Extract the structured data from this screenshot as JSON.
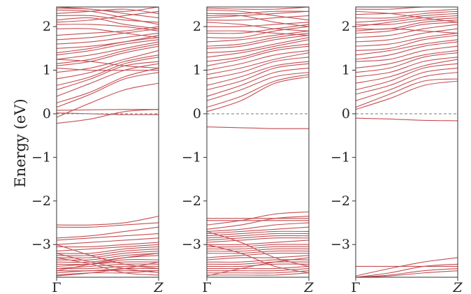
{
  "chart_data": {
    "type": "line",
    "ylabel": "Energy (eV)",
    "ylim": [
      -3.75,
      2.45
    ],
    "yticks": [
      2,
      1,
      0,
      -1,
      -2,
      -3
    ],
    "ytick_labels": [
      "2",
      "1",
      "0",
      "−1",
      "−2",
      "−3"
    ],
    "xtick_labels": [
      "Γ",
      "Z"
    ],
    "line_color": "#c44e52",
    "fermi_line": {
      "y": 0,
      "color": "#888888",
      "style": "dashed"
    },
    "panels": [
      {
        "name": "panel-1",
        "bands_above": [
          [
            -0.22,
            -0.12,
            0.05,
            0.1
          ],
          [
            0.02,
            0.0,
            -0.02,
            -0.02
          ],
          [
            0.08,
            0.09,
            0.1,
            0.1
          ],
          [
            -0.08,
            0.25,
            0.55,
            0.7
          ],
          [
            0.15,
            0.45,
            0.8,
            0.95
          ],
          [
            0.25,
            0.5,
            0.85,
            1.05
          ],
          [
            0.4,
            0.7,
            1.0,
            1.15
          ],
          [
            0.55,
            0.8,
            1.1,
            1.2
          ],
          [
            0.65,
            0.85,
            1.15,
            1.3
          ],
          [
            0.8,
            0.95,
            1.2,
            1.35
          ],
          [
            0.95,
            1.05,
            1.25,
            1.45
          ],
          [
            1.1,
            1.2,
            1.4,
            1.55
          ],
          [
            1.15,
            1.25,
            1.45,
            1.6
          ],
          [
            1.25,
            1.35,
            1.5,
            1.65
          ],
          [
            1.35,
            1.45,
            1.6,
            1.7
          ],
          [
            1.4,
            1.5,
            1.65,
            1.75
          ],
          [
            1.5,
            1.55,
            1.65,
            1.8
          ],
          [
            1.6,
            1.65,
            1.75,
            1.85
          ],
          [
            1.7,
            1.75,
            1.85,
            1.95
          ],
          [
            1.8,
            1.85,
            1.9,
            2.0
          ],
          [
            1.95,
            1.95,
            1.85,
            1.75
          ],
          [
            2.05,
            2.05,
            2.0,
            1.9
          ],
          [
            2.1,
            2.15,
            2.25,
            2.35
          ],
          [
            2.15,
            2.2,
            2.05,
            1.95
          ],
          [
            2.25,
            2.25,
            2.15,
            2.1
          ],
          [
            2.3,
            2.35,
            2.4,
            2.3
          ],
          [
            2.38,
            2.35,
            2.2,
            2.05
          ],
          [
            2.42,
            2.4,
            2.3,
            2.2
          ],
          [
            1.05,
            1.0,
            1.0,
            1.0
          ],
          [
            1.25,
            1.2,
            1.1,
            1.05
          ],
          [
            2.45,
            2.4,
            2.35,
            2.45
          ]
        ],
        "bands_below": [
          [
            -2.55,
            -2.55,
            -2.5,
            -2.35
          ],
          [
            -2.6,
            -2.6,
            -2.55,
            -2.5
          ],
          [
            -2.85,
            -2.8,
            -2.7,
            -2.6
          ],
          [
            -2.9,
            -2.85,
            -2.8,
            -2.75
          ],
          [
            -3.0,
            -2.95,
            -2.9,
            -2.85
          ],
          [
            -3.05,
            -3.05,
            -3.0,
            -2.95
          ],
          [
            -3.15,
            -3.1,
            -3.05,
            -3.0
          ],
          [
            -3.2,
            -3.2,
            -3.1,
            -3.05
          ],
          [
            -3.25,
            -3.25,
            -3.15,
            -3.1
          ],
          [
            -3.3,
            -3.3,
            -3.2,
            -3.15
          ],
          [
            -3.35,
            -3.35,
            -3.25,
            -3.2
          ],
          [
            -3.4,
            -3.4,
            -3.3,
            -3.25
          ],
          [
            -3.45,
            -3.45,
            -3.35,
            -3.35
          ],
          [
            -3.5,
            -3.45,
            -3.4,
            -3.4
          ],
          [
            -3.55,
            -3.5,
            -3.45,
            -3.45
          ],
          [
            -3.55,
            -3.55,
            -3.5,
            -3.5
          ],
          [
            -3.6,
            -3.6,
            -3.55,
            -3.55
          ],
          [
            -3.65,
            -3.6,
            -3.6,
            -3.6
          ],
          [
            -3.7,
            -3.65,
            -3.65,
            -3.6
          ],
          [
            -3.2,
            -3.4,
            -3.55,
            -3.65
          ],
          [
            -3.3,
            -3.45,
            -3.65,
            -3.7
          ],
          [
            -3.0,
            -3.25,
            -3.45,
            -3.55
          ],
          [
            -3.72,
            -3.65,
            -3.55,
            -3.4
          ],
          [
            -3.6,
            -3.45,
            -3.3,
            -3.2
          ]
        ]
      },
      {
        "name": "panel-2",
        "bands_above": [
          [
            -0.3,
            -0.32,
            -0.34,
            -0.34
          ],
          [
            0.05,
            0.3,
            0.7,
            0.85
          ],
          [
            0.15,
            0.4,
            0.75,
            0.9
          ],
          [
            0.3,
            0.55,
            0.85,
            0.95
          ],
          [
            0.4,
            0.65,
            0.95,
            1.05
          ],
          [
            0.55,
            0.75,
            1.05,
            1.15
          ],
          [
            0.65,
            0.85,
            1.1,
            1.2
          ],
          [
            0.8,
            0.95,
            1.2,
            1.3
          ],
          [
            0.9,
            1.05,
            1.25,
            1.4
          ],
          [
            1.0,
            1.15,
            1.35,
            1.45
          ],
          [
            1.1,
            1.25,
            1.45,
            1.55
          ],
          [
            1.2,
            1.3,
            1.5,
            1.6
          ],
          [
            1.3,
            1.4,
            1.55,
            1.7
          ],
          [
            1.4,
            1.45,
            1.6,
            1.75
          ],
          [
            1.5,
            1.55,
            1.7,
            1.8
          ],
          [
            1.55,
            1.6,
            1.75,
            1.85
          ],
          [
            1.65,
            1.7,
            1.8,
            1.9
          ],
          [
            1.75,
            1.75,
            1.9,
            2.0
          ],
          [
            1.85,
            1.85,
            1.95,
            2.05
          ],
          [
            1.9,
            1.9,
            1.85,
            1.8
          ],
          [
            2.0,
            2.0,
            2.05,
            2.1
          ],
          [
            2.1,
            2.05,
            1.95,
            1.9
          ],
          [
            2.15,
            2.15,
            2.2,
            2.25
          ],
          [
            2.25,
            2.25,
            2.1,
            2.0
          ],
          [
            2.3,
            2.3,
            2.35,
            2.35
          ],
          [
            2.38,
            2.35,
            2.25,
            2.15
          ],
          [
            2.42,
            2.4,
            2.4,
            2.45
          ],
          [
            2.2,
            2.25,
            2.3,
            2.35
          ]
        ],
        "bands_below": [
          [
            -2.4,
            -2.4,
            -2.4,
            -2.4
          ],
          [
            -2.45,
            -2.45,
            -2.45,
            -2.45
          ],
          [
            -2.55,
            -2.45,
            -2.3,
            -2.25
          ],
          [
            -2.65,
            -2.55,
            -2.4,
            -2.35
          ],
          [
            -2.7,
            -2.65,
            -2.55,
            -2.5
          ],
          [
            -2.75,
            -2.7,
            -2.65,
            -2.6
          ],
          [
            -2.8,
            -2.75,
            -2.7,
            -2.7
          ],
          [
            -2.85,
            -2.8,
            -2.75,
            -2.75
          ],
          [
            -2.9,
            -2.85,
            -2.8,
            -2.8
          ],
          [
            -2.95,
            -2.9,
            -2.85,
            -2.85
          ],
          [
            -3.0,
            -3.0,
            -2.95,
            -2.9
          ],
          [
            -3.05,
            -3.05,
            -3.0,
            -3.0
          ],
          [
            -3.1,
            -3.1,
            -3.05,
            -3.05
          ],
          [
            -3.15,
            -3.15,
            -3.1,
            -3.1
          ],
          [
            -3.2,
            -3.2,
            -3.15,
            -3.15
          ],
          [
            -3.3,
            -3.25,
            -3.2,
            -3.2
          ],
          [
            -3.35,
            -3.3,
            -3.3,
            -3.25
          ],
          [
            -3.4,
            -3.4,
            -3.35,
            -3.35
          ],
          [
            -3.45,
            -3.45,
            -3.4,
            -3.4
          ],
          [
            -3.5,
            -3.5,
            -3.45,
            -3.45
          ],
          [
            -3.55,
            -3.55,
            -3.55,
            -3.5
          ],
          [
            -3.6,
            -3.6,
            -3.6,
            -3.55
          ],
          [
            -3.65,
            -3.65,
            -3.65,
            -3.6
          ],
          [
            -3.7,
            -3.7,
            -3.7,
            -3.65
          ],
          [
            -2.7,
            -2.95,
            -3.3,
            -3.5
          ],
          [
            -3.0,
            -3.2,
            -3.5,
            -3.65
          ],
          [
            -3.72,
            -3.55,
            -3.4,
            -3.3
          ]
        ]
      },
      {
        "name": "panel-3",
        "bands_above": [
          [
            -0.1,
            -0.12,
            -0.15,
            -0.16
          ],
          [
            0.1,
            0.35,
            0.65,
            0.75
          ],
          [
            0.15,
            0.45,
            0.75,
            0.8
          ],
          [
            0.3,
            0.55,
            0.85,
            0.95
          ],
          [
            0.45,
            0.65,
            0.95,
            1.05
          ],
          [
            0.55,
            0.75,
            1.05,
            1.15
          ],
          [
            0.7,
            0.85,
            1.1,
            1.25
          ],
          [
            0.85,
            0.95,
            1.2,
            1.3
          ],
          [
            0.95,
            1.05,
            1.3,
            1.4
          ],
          [
            1.05,
            1.15,
            1.35,
            1.45
          ],
          [
            1.2,
            1.25,
            1.45,
            1.55
          ],
          [
            1.25,
            1.35,
            1.55,
            1.65
          ],
          [
            1.35,
            1.45,
            1.6,
            1.7
          ],
          [
            1.45,
            1.5,
            1.7,
            1.8
          ],
          [
            1.55,
            1.6,
            1.75,
            1.85
          ],
          [
            1.65,
            1.7,
            1.85,
            1.95
          ],
          [
            1.75,
            1.8,
            1.95,
            2.05
          ],
          [
            1.85,
            1.9,
            2.05,
            2.1
          ],
          [
            1.95,
            1.95,
            2.1,
            2.15
          ],
          [
            2.05,
            2.05,
            2.15,
            2.2
          ],
          [
            2.1,
            2.15,
            2.25,
            2.3
          ],
          [
            2.2,
            2.2,
            2.3,
            2.35
          ],
          [
            2.28,
            2.3,
            2.35,
            2.4
          ],
          [
            2.35,
            2.3,
            2.2,
            2.1
          ],
          [
            2.4,
            2.4,
            2.45,
            2.45
          ],
          [
            2.0,
            2.1,
            2.2,
            2.25
          ],
          [
            1.9,
            1.95,
            1.9,
            1.85
          ]
        ],
        "bands_below": [
          [
            -3.5,
            -3.5,
            -3.5,
            -3.5
          ],
          [
            -3.72,
            -3.55,
            -3.4,
            -3.3
          ],
          [
            -3.75,
            -3.65,
            -3.5,
            -3.45
          ],
          [
            -3.75,
            -3.7,
            -3.6,
            -3.55
          ],
          [
            -3.75,
            -3.72,
            -3.65,
            -3.6
          ]
        ]
      }
    ]
  }
}
